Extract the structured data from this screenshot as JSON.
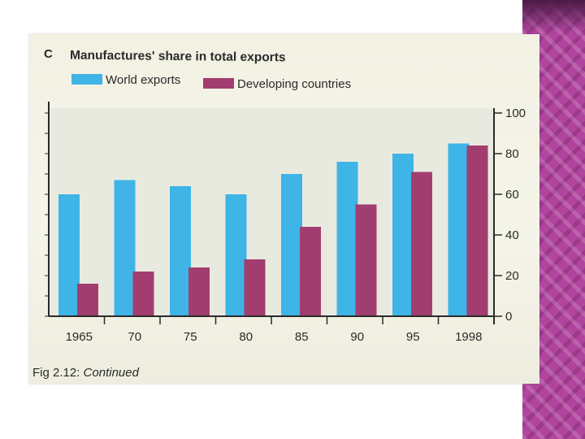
{
  "panel_letter": "C",
  "caption": {
    "label": "Fig 2.12:",
    "text": "Continued"
  },
  "colors": {
    "world": "#3fb4e6",
    "developing": "#a23e6f",
    "side_band": "#b0459e"
  },
  "chart_data": {
    "type": "bar",
    "title": "Manufactures' share in total exports",
    "categories": [
      "1965",
      "70",
      "75",
      "80",
      "85",
      "90",
      "95",
      "1998"
    ],
    "series": [
      {
        "name": "World exports",
        "values": [
          60,
          67,
          64,
          60,
          70,
          76,
          80,
          85
        ]
      },
      {
        "name": "Developing countries",
        "values": [
          16,
          22,
          24,
          28,
          44,
          55,
          71,
          84
        ]
      }
    ],
    "ylim": [
      0,
      100
    ],
    "yticks": [
      0,
      20,
      40,
      60,
      80,
      100
    ],
    "y_axis_side": "right",
    "legend": "top-left",
    "grid": false
  }
}
